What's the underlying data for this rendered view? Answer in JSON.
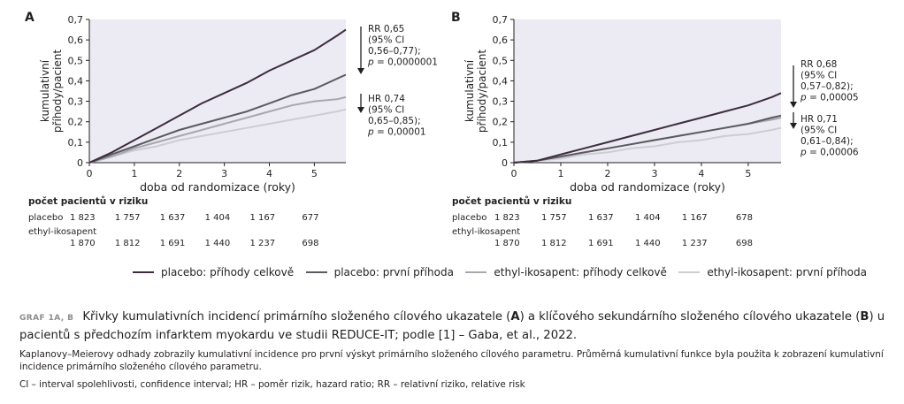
{
  "chart_data": [
    {
      "type": "line",
      "panel_label": "A",
      "xlabel": "doba od randomizace (roky)",
      "ylabel": "kumulativní příhody/pacient",
      "xlim": [
        0,
        5.7
      ],
      "ylim": [
        0,
        0.7
      ],
      "x_ticks": [
        "0",
        "1",
        "2",
        "3",
        "4",
        "5"
      ],
      "y_ticks": [
        "0",
        "0,1",
        "0,2",
        "0,3",
        "0,4",
        "0,5",
        "0,6",
        "0,7"
      ],
      "series": [
        {
          "name": "placebo: příhody celkově",
          "color": "#3d2c3e",
          "x": [
            0,
            0.5,
            1,
            1.5,
            2,
            2.5,
            3,
            3.5,
            4,
            4.5,
            5,
            5.5,
            5.7
          ],
          "y": [
            0,
            0.05,
            0.11,
            0.17,
            0.23,
            0.29,
            0.34,
            0.39,
            0.45,
            0.5,
            0.55,
            0.62,
            0.65
          ]
        },
        {
          "name": "placebo: první příhoda",
          "color": "#5c5a60",
          "x": [
            0,
            0.5,
            1,
            1.5,
            2,
            2.5,
            3,
            3.5,
            4,
            4.5,
            5,
            5.5,
            5.7
          ],
          "y": [
            0,
            0.04,
            0.08,
            0.12,
            0.16,
            0.19,
            0.22,
            0.25,
            0.29,
            0.33,
            0.36,
            0.41,
            0.43
          ]
        },
        {
          "name": "ethyl-ikosapent: příhody celkově",
          "color": "#a9a7ad",
          "x": [
            0,
            0.5,
            1,
            1.5,
            2,
            2.5,
            3,
            3.5,
            4,
            4.5,
            5,
            5.5,
            5.7
          ],
          "y": [
            0,
            0.03,
            0.07,
            0.1,
            0.13,
            0.16,
            0.19,
            0.22,
            0.25,
            0.28,
            0.3,
            0.31,
            0.32
          ]
        },
        {
          "name": "ethyl-ikosapent: první příhoda",
          "color": "#cdccd1",
          "x": [
            0,
            0.5,
            1,
            1.5,
            2,
            2.5,
            3,
            3.5,
            4,
            4.5,
            5,
            5.5,
            5.7
          ],
          "y": [
            0,
            0.03,
            0.06,
            0.08,
            0.11,
            0.13,
            0.15,
            0.17,
            0.19,
            0.21,
            0.23,
            0.25,
            0.26
          ]
        }
      ],
      "annotations": [
        {
          "lines": [
            "RR 0,65",
            "(95% CI",
            "0,56–0,77);",
            "p = 0,0000001"
          ]
        },
        {
          "lines": [
            "HR 0,74",
            "(95% CI",
            "0,65–0,85);",
            "p = 0,00001"
          ]
        }
      ]
    },
    {
      "type": "line",
      "panel_label": "B",
      "xlabel": "doba od randomizace (roky)",
      "ylabel": "kumulativní příhody/pacient",
      "xlim": [
        0,
        5.7
      ],
      "ylim": [
        0,
        0.7
      ],
      "x_ticks": [
        "0",
        "1",
        "2",
        "3",
        "4",
        "5"
      ],
      "y_ticks": [
        "0",
        "0,1",
        "0,2",
        "0,3",
        "0,4",
        "0,5",
        "0,6",
        "0,7"
      ],
      "series": [
        {
          "name": "placebo: příhody celkově",
          "color": "#3d2c3e",
          "x": [
            0,
            0.5,
            1,
            1.5,
            2,
            2.5,
            3,
            3.5,
            4,
            4.5,
            5,
            5.5,
            5.7
          ],
          "y": [
            0,
            0.01,
            0.04,
            0.07,
            0.1,
            0.13,
            0.16,
            0.19,
            0.22,
            0.25,
            0.28,
            0.32,
            0.34
          ]
        },
        {
          "name": "placebo: první příhoda",
          "color": "#5c5a60",
          "x": [
            0,
            0.5,
            1,
            1.5,
            2,
            2.5,
            3,
            3.5,
            4,
            4.5,
            5,
            5.5,
            5.7
          ],
          "y": [
            0,
            0.01,
            0.03,
            0.05,
            0.07,
            0.09,
            0.11,
            0.13,
            0.15,
            0.17,
            0.19,
            0.22,
            0.23
          ]
        },
        {
          "name": "ethyl-ikosapent: příhody celkově",
          "color": "#a9a7ad",
          "x": [
            0,
            0.5,
            1,
            1.5,
            2,
            2.5,
            3,
            3.5,
            4,
            4.5,
            5,
            5.5,
            5.7
          ],
          "y": [
            0,
            0.01,
            0.03,
            0.05,
            0.07,
            0.09,
            0.11,
            0.13,
            0.15,
            0.17,
            0.19,
            0.21,
            0.22
          ]
        },
        {
          "name": "ethyl-ikosapent: první příhoda",
          "color": "#cdccd1",
          "x": [
            0,
            0.5,
            1,
            1.5,
            2,
            2.5,
            3,
            3.5,
            4,
            4.5,
            5,
            5.5,
            5.7
          ],
          "y": [
            0,
            0.01,
            0.02,
            0.04,
            0.05,
            0.07,
            0.08,
            0.1,
            0.11,
            0.13,
            0.14,
            0.16,
            0.17
          ]
        }
      ],
      "annotations": [
        {
          "lines": [
            "RR 0,68",
            "(95% CI",
            "0,57–0,82);",
            "p = 0,00005"
          ]
        },
        {
          "lines": [
            "HR 0,71",
            "(95% CI",
            "0,61–0,84);",
            "p = 0,00006"
          ]
        }
      ]
    }
  ],
  "risk_table": {
    "title": "počet pacientů v riziku",
    "placebo_label": "placebo",
    "ethyl_label": "ethyl-ikosapent",
    "A": {
      "placebo": [
        "1 823",
        "1 757",
        "1 637",
        "1 404",
        "1 167",
        "677"
      ],
      "ethyl": [
        "1 870",
        "1 812",
        "1 691",
        "1 440",
        "1 237",
        "698"
      ]
    },
    "B": {
      "placebo": [
        "1 823",
        "1 757",
        "1 637",
        "1 404",
        "1 167",
        "678"
      ],
      "ethyl": [
        "1 870",
        "1 812",
        "1 691",
        "1 440",
        "1 237",
        "698"
      ]
    }
  },
  "legend": [
    {
      "label": "placebo: příhody celkově",
      "color": "#3d2c3e"
    },
    {
      "label": "placebo: první příhoda",
      "color": "#5c5a60"
    },
    {
      "label": "ethyl-ikosapent: příhody celkově",
      "color": "#a9a7ad"
    },
    {
      "label": "ethyl-ikosapent: první příhoda",
      "color": "#cdccd1"
    }
  ],
  "caption": {
    "tag": "GRAF 1A, B",
    "title_parts": [
      "Křivky kumulativních incidencí primárního složeného cílového ukazatele (",
      "A",
      ") a klíčového sekundárního složeného cílového ukazatele (",
      "B",
      ") u pacientů s předchozím infarktem myokardu ve studii REDUCE-IT; podle [1] – Gaba, et al., 2022."
    ],
    "note": "Kaplanovy–Meierovy odhady zobrazily kumulativní incidence pro první výskyt primárního složeného cílového parametru. Průměrná kumulativní funkce byla použita k zobrazení kumulativní incidence primárního složeného cílového parametru.",
    "abbreviations": "CI – interval spolehlivosti, confidence interval; HR – poměr rizik, hazard ratio; RR – relativní riziko, relative risk"
  }
}
